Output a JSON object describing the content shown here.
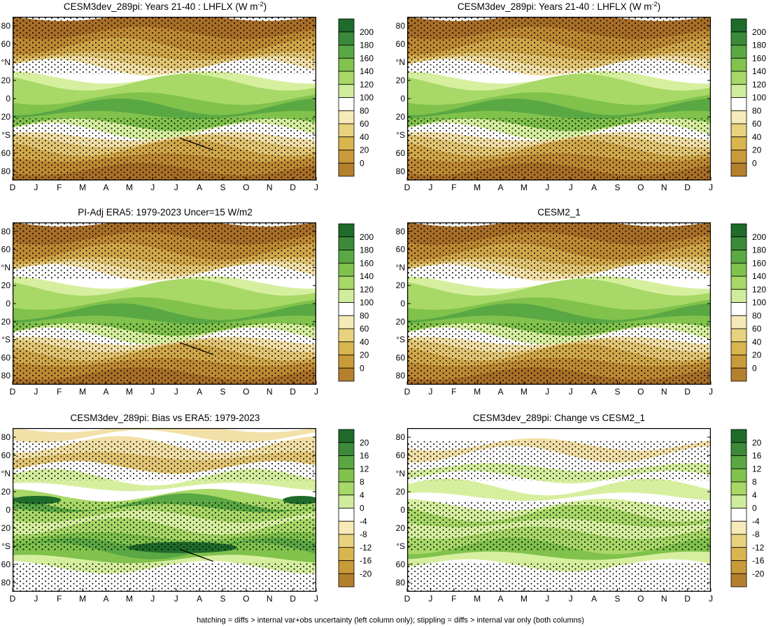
{
  "chart_data": [
    {
      "type": "heatmap",
      "title": "CESM3dev_289pi: Years 21-40 : LHFLX (W m",
      "title_superscript": "-2",
      "title_suffix": ")",
      "variable": "LHFLX",
      "xlabel": "",
      "ylabel": "",
      "x_tick_labels": [
        "D",
        "J",
        "F",
        "M",
        "A",
        "M",
        "J",
        "J",
        "A",
        "S",
        "O",
        "N",
        "D",
        "J"
      ],
      "y_tick_labels": [
        "80",
        "60",
        "°N",
        "20",
        "0",
        "20",
        "°S",
        "60",
        "80"
      ],
      "ylim": [
        -90,
        90
      ],
      "colorbar_labels": [
        "200",
        "180",
        "160",
        "140",
        "120",
        "100",
        "80",
        "60",
        "40",
        "20",
        "0"
      ],
      "band_peak_values": {
        "north_pole": 0,
        "north_midlat": 60,
        "subtropics_n": 110,
        "tropics": 170,
        "subtropics_s": 100,
        "south_midlat": 40,
        "south_pole": 0
      },
      "hatching": true,
      "stippling": true
    },
    {
      "type": "heatmap",
      "title": "CESM3dev_289pi: Years 21-40 : LHFLX (W m",
      "title_superscript": "-2",
      "title_suffix": ")",
      "variable": "LHFLX",
      "x_tick_labels": [
        "D",
        "J",
        "F",
        "M",
        "A",
        "M",
        "J",
        "J",
        "A",
        "S",
        "O",
        "N",
        "D",
        "J"
      ],
      "y_tick_labels": [
        "80",
        "60",
        "°N",
        "20",
        "0",
        "20",
        "°S",
        "60",
        "80"
      ],
      "ylim": [
        -90,
        90
      ],
      "colorbar_labels": [
        "200",
        "180",
        "160",
        "140",
        "120",
        "100",
        "80",
        "60",
        "40",
        "20",
        "0"
      ],
      "hatching": false,
      "stippling": true
    },
    {
      "type": "heatmap",
      "title": "PI-Adj ERA5: 1979-2023 Uncer=15 W/m2",
      "x_tick_labels": [
        "D",
        "J",
        "F",
        "M",
        "A",
        "M",
        "J",
        "J",
        "A",
        "S",
        "O",
        "N",
        "D",
        "J"
      ],
      "y_tick_labels": [
        "80",
        "60",
        "°N",
        "20",
        "0",
        "20",
        "°S",
        "60",
        "80"
      ],
      "ylim": [
        -90,
        90
      ],
      "colorbar_labels": [
        "200",
        "180",
        "160",
        "140",
        "120",
        "100",
        "80",
        "60",
        "40",
        "20",
        "0"
      ],
      "hatching": true,
      "stippling": true
    },
    {
      "type": "heatmap",
      "title": "CESM2_1",
      "x_tick_labels": [
        "D",
        "J",
        "F",
        "M",
        "A",
        "M",
        "J",
        "J",
        "A",
        "S",
        "O",
        "N",
        "D",
        "J"
      ],
      "y_tick_labels": [
        "80",
        "60",
        "°N",
        "20",
        "0",
        "20",
        "°S",
        "60",
        "80"
      ],
      "ylim": [
        -90,
        90
      ],
      "colorbar_labels": [
        "200",
        "180",
        "160",
        "140",
        "120",
        "100",
        "80",
        "60",
        "40",
        "20",
        "0"
      ],
      "hatching": false,
      "stippling": true
    },
    {
      "type": "heatmap",
      "title": "CESM3dev_289pi: Bias vs ERA5: 1979-2023",
      "x_tick_labels": [
        "D",
        "J",
        "F",
        "M",
        "A",
        "M",
        "J",
        "J",
        "A",
        "S",
        "O",
        "N",
        "D",
        "J"
      ],
      "y_tick_labels": [
        "80",
        "60",
        "°N",
        "20",
        "0",
        "20",
        "°S",
        "60",
        "80"
      ],
      "ylim": [
        -90,
        90
      ],
      "colorbar_labels": [
        "20",
        "16",
        "12",
        "8",
        "4",
        "0",
        "-4",
        "-8",
        "-12",
        "-16",
        "-20"
      ],
      "hatching": true,
      "stippling": true
    },
    {
      "type": "heatmap",
      "title": "CESM3dev_289pi: Change vs CESM2_1",
      "x_tick_labels": [
        "D",
        "J",
        "F",
        "M",
        "A",
        "M",
        "J",
        "J",
        "A",
        "S",
        "O",
        "N",
        "D",
        "J"
      ],
      "y_tick_labels": [
        "80",
        "60",
        "°N",
        "20",
        "0",
        "20",
        "°S",
        "60",
        "80"
      ],
      "ylim": [
        -90,
        90
      ],
      "colorbar_labels": [
        "20",
        "16",
        "12",
        "8",
        "4",
        "0",
        "-4",
        "-8",
        "-12",
        "-16",
        "-20"
      ],
      "hatching": false,
      "stippling": true
    }
  ],
  "colorbar_colors": [
    "#1e6b2a",
    "#3b8a3a",
    "#5aa843",
    "#80c24c",
    "#a8d867",
    "#d0ec9d",
    "#ffffff",
    "#f5eab8",
    "#e8d27e",
    "#d9b54f",
    "#c99a3a",
    "#b4802d"
  ],
  "field_colors": [
    "#a96f27",
    "#bf8a33",
    "#d2a84a",
    "#e3c674",
    "#f2e0a8",
    "#ffffff",
    "#d6ef9f",
    "#a8d867",
    "#80c24c",
    "#5aa843",
    "#3b8a3a",
    "#1e6b2a"
  ],
  "footer": "hatching = diffs > internal var+obs uncertainty (left column only); stippling = diffs > internal var only (both columns)"
}
